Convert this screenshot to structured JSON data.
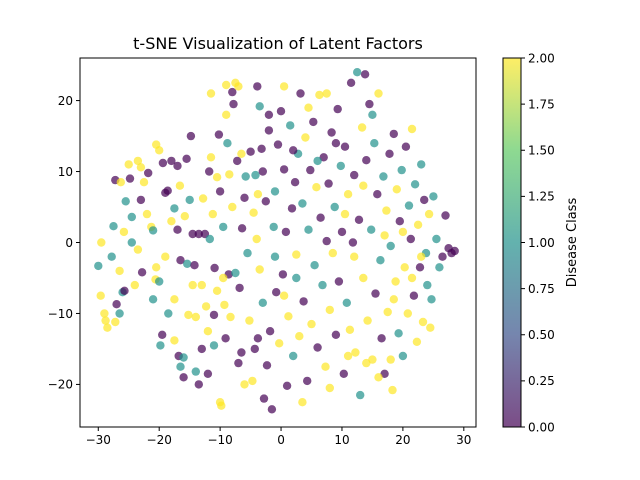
{
  "chart_data": {
    "type": "scatter",
    "title": "t-SNE Visualization of Latent Factors",
    "xlabel": "",
    "ylabel": "",
    "xlim": [
      -33,
      32
    ],
    "ylim": [
      -26,
      26
    ],
    "xticks": [
      -30,
      -20,
      -10,
      0,
      10,
      20,
      30
    ],
    "yticks": [
      -20,
      -10,
      0,
      10,
      20
    ],
    "grid": false,
    "point_alpha": 0.7,
    "colormap": "viridis",
    "colormap_stops": [
      "#440154",
      "#3b528b",
      "#21918c",
      "#5ec962",
      "#fde725"
    ],
    "colorbar": {
      "label": "Disease Class",
      "range": [
        0,
        2
      ],
      "ticks": [
        0.0,
        0.25,
        0.5,
        0.75,
        1.0,
        1.25,
        1.5,
        1.75,
        2.0
      ],
      "tick_labels": [
        "0.00",
        "0.25",
        "0.50",
        "0.75",
        "1.00",
        "1.25",
        "1.50",
        "1.75",
        "2.00"
      ]
    },
    "points": [
      [
        -30,
        -3.3,
        1
      ],
      [
        -29.5,
        0,
        2
      ],
      [
        -29.6,
        -7.5,
        2
      ],
      [
        -29,
        -10,
        2
      ],
      [
        -28.8,
        -11,
        2
      ],
      [
        -28.5,
        -12,
        2
      ],
      [
        -27.8,
        -2,
        1
      ],
      [
        -27,
        -8.7,
        0
      ],
      [
        -27.2,
        -11.2,
        2
      ],
      [
        -26.5,
        -10,
        1
      ],
      [
        -26,
        -7,
        1
      ],
      [
        -25.7,
        -6.8,
        0
      ],
      [
        -27.5,
        2.3,
        1
      ],
      [
        -27.2,
        8.8,
        0
      ],
      [
        -26.3,
        8.5,
        2
      ],
      [
        -25.5,
        5.8,
        1
      ],
      [
        -24.8,
        9,
        0
      ],
      [
        -24.5,
        3.6,
        1
      ],
      [
        -24.5,
        0,
        1
      ],
      [
        -23.5,
        -1,
        2
      ],
      [
        -23.5,
        11.5,
        2
      ],
      [
        -23,
        10.6,
        2
      ],
      [
        -23,
        6,
        0
      ],
      [
        -22.5,
        8.5,
        2
      ],
      [
        -22.8,
        -4.2,
        0
      ],
      [
        -21.8,
        9.8,
        0
      ],
      [
        -21.3,
        2.2,
        2
      ],
      [
        -21,
        1.7,
        1
      ],
      [
        -20.5,
        -3.5,
        2
      ],
      [
        -20.6,
        -5.2,
        2
      ],
      [
        -20.5,
        13.8,
        2
      ],
      [
        -20,
        13,
        2
      ],
      [
        -20,
        -5.5,
        1
      ],
      [
        -19.4,
        11.2,
        0
      ],
      [
        -19.5,
        -13,
        0
      ],
      [
        -19.8,
        -14.5,
        1
      ],
      [
        -19,
        7,
        0
      ],
      [
        -18.6,
        7.3,
        0
      ],
      [
        -18,
        11.5,
        0
      ],
      [
        -17.5,
        -8,
        2
      ],
      [
        -17.5,
        -13.8,
        2
      ],
      [
        -17.5,
        4.8,
        1
      ],
      [
        -17,
        10.8,
        0
      ],
      [
        -17,
        1.8,
        0
      ],
      [
        -16.8,
        -16,
        0
      ],
      [
        -16.5,
        -17.5,
        1
      ],
      [
        -16.5,
        -2.5,
        0
      ],
      [
        -16.6,
        8,
        2
      ],
      [
        -16,
        -19,
        0
      ],
      [
        -16,
        -16.2,
        1
      ],
      [
        -15.8,
        3.7,
        2
      ],
      [
        -15.5,
        11.8,
        0
      ],
      [
        -15.4,
        -3,
        1
      ],
      [
        -15.2,
        -10.2,
        2
      ],
      [
        -14.8,
        15,
        0
      ],
      [
        -14.5,
        1.2,
        0
      ],
      [
        -14.2,
        -3.2,
        0
      ],
      [
        -14,
        -10.5,
        2
      ],
      [
        -14,
        -18.2,
        1
      ],
      [
        -13.5,
        -20,
        0
      ],
      [
        -13.5,
        1.2,
        0
      ],
      [
        -13,
        -15,
        0
      ],
      [
        -12.8,
        6.2,
        2
      ],
      [
        -12.5,
        1.2,
        0
      ],
      [
        -12.3,
        -9,
        2
      ],
      [
        -12,
        -12.5,
        2
      ],
      [
        -12,
        -18.5,
        0
      ],
      [
        -11.8,
        10,
        0
      ],
      [
        -11.7,
        0.5,
        1
      ],
      [
        -11.5,
        12,
        2
      ],
      [
        -11.2,
        4,
        2
      ],
      [
        -11,
        -14.5,
        1
      ],
      [
        -11,
        -10.2,
        0
      ],
      [
        -10.9,
        -3.6,
        0
      ],
      [
        -10.5,
        9.2,
        2
      ],
      [
        -10.5,
        -6.8,
        2
      ],
      [
        -10.2,
        15.2,
        0
      ],
      [
        -10,
        -22.5,
        2
      ],
      [
        -10,
        7.2,
        0
      ],
      [
        -9.8,
        -23,
        2
      ],
      [
        -9.5,
        2.2,
        1
      ],
      [
        -9.3,
        -8.8,
        2
      ],
      [
        -9.1,
        -13.5,
        0
      ],
      [
        -9,
        18,
        2
      ],
      [
        -8.8,
        14,
        1
      ],
      [
        -8.6,
        -4.5,
        0
      ],
      [
        -8.5,
        9.6,
        2
      ],
      [
        -8.3,
        -10.5,
        2
      ],
      [
        -8,
        21.2,
        0
      ],
      [
        -7.8,
        19.5,
        0
      ],
      [
        -7.5,
        -4.3,
        1
      ],
      [
        -7.2,
        11.5,
        0
      ],
      [
        -7,
        -17,
        0
      ],
      [
        -6.8,
        -6.4,
        0
      ],
      [
        -6.5,
        -15.5,
        0
      ],
      [
        -6.4,
        2,
        0
      ],
      [
        -6,
        6.3,
        0
      ],
      [
        -5.8,
        9.3,
        1
      ],
      [
        -5.5,
        -1.5,
        1
      ],
      [
        -5.2,
        -11,
        2
      ],
      [
        -5,
        12.8,
        0
      ],
      [
        -4.7,
        -19.5,
        2
      ],
      [
        -4.5,
        4.2,
        2
      ],
      [
        -4.3,
        -15,
        0
      ],
      [
        -4.2,
        9.5,
        1
      ],
      [
        -3.9,
        22,
        0
      ],
      [
        -3.8,
        -13.5,
        0
      ],
      [
        -3.5,
        -3.8,
        2
      ],
      [
        -3.5,
        19.2,
        1
      ],
      [
        -3.2,
        13.2,
        0
      ],
      [
        -3,
        -8.5,
        1
      ],
      [
        -2.8,
        -22,
        0
      ],
      [
        -2.5,
        5.8,
        0
      ],
      [
        -2.3,
        -17.3,
        0
      ],
      [
        -2,
        15.8,
        0
      ],
      [
        -1.8,
        -12.5,
        0
      ],
      [
        -1.5,
        -23.5,
        0
      ],
      [
        -1.2,
        2.2,
        1
      ],
      [
        -1,
        7.2,
        1
      ],
      [
        -0.8,
        -7,
        0
      ],
      [
        -0.5,
        13.8,
        0
      ],
      [
        -0.3,
        -14.2,
        2
      ],
      [
        0,
        18.5,
        0
      ],
      [
        0.3,
        -4.5,
        0
      ],
      [
        0.5,
        10.3,
        0
      ],
      [
        0.8,
        1.5,
        0
      ],
      [
        1,
        -20.2,
        0
      ],
      [
        1.2,
        -10.4,
        2
      ],
      [
        1.5,
        16.5,
        1
      ],
      [
        1.8,
        4.8,
        0
      ],
      [
        2,
        -16,
        1
      ],
      [
        2.3,
        8.5,
        0
      ],
      [
        2.5,
        -1.7,
        2
      ],
      [
        2.8,
        12.5,
        1
      ],
      [
        3,
        -13.2,
        2
      ],
      [
        3.2,
        21,
        0
      ],
      [
        3.5,
        5.5,
        1
      ],
      [
        3.7,
        -8.3,
        0
      ],
      [
        4,
        14.8,
        2
      ],
      [
        4.3,
        -19.5,
        0
      ],
      [
        4.5,
        1.8,
        1
      ],
      [
        4.8,
        10.2,
        0
      ],
      [
        5,
        -11.5,
        2
      ],
      [
        5.3,
        17,
        0
      ],
      [
        5.5,
        -3.2,
        1
      ],
      [
        5.8,
        7.8,
        2
      ],
      [
        6,
        -14.8,
        0
      ],
      [
        6.3,
        20.8,
        2
      ],
      [
        6.5,
        3.5,
        0
      ],
      [
        6.8,
        -6,
        1
      ],
      [
        7,
        12,
        0
      ],
      [
        7.3,
        -17.5,
        2
      ],
      [
        7.5,
        0.2,
        0
      ],
      [
        7.8,
        8.3,
        0
      ],
      [
        8,
        -9.5,
        2
      ],
      [
        8.3,
        15.5,
        0
      ],
      [
        8.5,
        -1.5,
        2
      ],
      [
        8.8,
        5,
        1
      ],
      [
        9,
        -13,
        0
      ],
      [
        9.3,
        18.8,
        0
      ],
      [
        9.5,
        -5.5,
        0
      ],
      [
        9.8,
        10.8,
        1
      ],
      [
        10,
        1.5,
        0
      ],
      [
        10.3,
        -18.5,
        0
      ],
      [
        10.5,
        13.5,
        0
      ],
      [
        10.8,
        -8.5,
        1
      ],
      [
        11,
        6.8,
        2
      ],
      [
        11.3,
        -12.3,
        2
      ],
      [
        11.5,
        22.5,
        0
      ],
      [
        11.8,
        0,
        0
      ],
      [
        12,
        9.5,
        0
      ],
      [
        12.2,
        -15.5,
        2
      ],
      [
        12.5,
        24,
        1
      ],
      [
        12.8,
        3.2,
        0
      ],
      [
        13,
        -21.5,
        1
      ],
      [
        13.3,
        16.2,
        2
      ],
      [
        13.5,
        -5,
        2
      ],
      [
        13.8,
        23.7,
        0
      ],
      [
        14,
        11.6,
        0
      ],
      [
        14.2,
        -11,
        2
      ],
      [
        14.5,
        19.5,
        0
      ],
      [
        14.8,
        1.8,
        1
      ],
      [
        15,
        -16.5,
        2
      ],
      [
        15.3,
        14,
        1
      ],
      [
        15.5,
        -7.2,
        0
      ],
      [
        15.8,
        6.8,
        0
      ],
      [
        16,
        21,
        2
      ],
      [
        16.3,
        -2.5,
        1
      ],
      [
        16.5,
        -13.5,
        0
      ],
      [
        16.8,
        9.3,
        1
      ],
      [
        17,
        -18.5,
        0
      ],
      [
        17.3,
        4.5,
        2
      ],
      [
        17.5,
        -9.8,
        2
      ],
      [
        17.8,
        12.5,
        0
      ],
      [
        18,
        -0.5,
        1
      ],
      [
        18.3,
        -20.8,
        2
      ],
      [
        18.5,
        15.3,
        0
      ],
      [
        18.8,
        -5.5,
        2
      ],
      [
        19,
        7.5,
        2
      ],
      [
        19.3,
        -12.8,
        1
      ],
      [
        19.5,
        3,
        0
      ],
      [
        19.8,
        10.2,
        1
      ],
      [
        20,
        -16,
        1
      ],
      [
        20.3,
        -3.5,
        2
      ],
      [
        20.5,
        13.5,
        0
      ],
      [
        20.8,
        -10,
        2
      ],
      [
        21,
        5.2,
        1
      ],
      [
        21.3,
        0.5,
        0
      ],
      [
        21.5,
        16,
        2
      ],
      [
        21.8,
        -7.5,
        0
      ],
      [
        22,
        8.2,
        1
      ],
      [
        22.3,
        -14,
        2
      ],
      [
        22.5,
        2.5,
        2
      ],
      [
        22.8,
        -3.5,
        0
      ],
      [
        23,
        11,
        1
      ],
      [
        23.3,
        -11.2,
        2
      ],
      [
        23.5,
        6,
        0
      ],
      [
        23.8,
        -1.5,
        1
      ],
      [
        24,
        -6,
        1
      ],
      [
        24.3,
        4,
        2
      ],
      [
        24.5,
        -12,
        2
      ],
      [
        24.7,
        -8,
        1
      ],
      [
        25,
        6.5,
        1
      ],
      [
        25.5,
        0.5,
        1
      ],
      [
        26,
        -3.5,
        1
      ],
      [
        26.5,
        -2,
        0
      ],
      [
        27,
        3.8,
        0
      ],
      [
        27.5,
        -0.8,
        0
      ],
      [
        28,
        -1.5,
        0
      ],
      [
        28.5,
        -1.2,
        0
      ],
      [
        -26.5,
        -4,
        2
      ],
      [
        -25.8,
        1.5,
        2
      ],
      [
        -25,
        11,
        2
      ],
      [
        -24,
        -6,
        2
      ],
      [
        -22,
        4,
        2
      ],
      [
        -21,
        -8,
        1
      ],
      [
        -19,
        -2,
        2
      ],
      [
        -18.5,
        -10,
        1
      ],
      [
        -18,
        3,
        2
      ],
      [
        -15,
        6,
        1
      ],
      [
        -14.5,
        -6,
        2
      ],
      [
        -13,
        -6,
        2
      ],
      [
        -9.5,
        -5,
        2
      ],
      [
        -8,
        5,
        2
      ],
      [
        -7,
        22,
        2
      ],
      [
        -6,
        -20,
        2
      ],
      [
        -4,
        0.5,
        2
      ],
      [
        -3,
        10,
        0
      ],
      [
        -1,
        -2,
        1
      ],
      [
        0.5,
        -7.5,
        2
      ],
      [
        2.5,
        -5,
        1
      ],
      [
        3.5,
        -22.5,
        2
      ],
      [
        6,
        11.5,
        1
      ],
      [
        7.5,
        21,
        2
      ],
      [
        9,
        14,
        0
      ],
      [
        10.5,
        4,
        2
      ],
      [
        12,
        -2,
        2
      ],
      [
        13.5,
        8,
        2
      ],
      [
        15,
        18,
        1
      ],
      [
        16,
        -19,
        2
      ],
      [
        17,
        1,
        2
      ],
      [
        18.5,
        -8,
        2
      ],
      [
        20,
        1.5,
        2
      ],
      [
        21.5,
        -5,
        2
      ],
      [
        23,
        -2,
        2
      ],
      [
        -11.5,
        21,
        2
      ],
      [
        -9,
        22.2,
        2
      ],
      [
        -7.5,
        22.5,
        2
      ],
      [
        -6.5,
        12.5,
        2
      ],
      [
        -3.8,
        6.8,
        2
      ],
      [
        -2,
        18,
        0
      ],
      [
        0.5,
        22,
        2
      ],
      [
        2,
        13,
        0
      ],
      [
        4.5,
        19,
        2
      ],
      [
        8,
        -20.5,
        2
      ],
      [
        11,
        -16,
        2
      ],
      [
        14,
        -17,
        2
      ],
      [
        18,
        -16.5,
        2
      ]
    ]
  }
}
